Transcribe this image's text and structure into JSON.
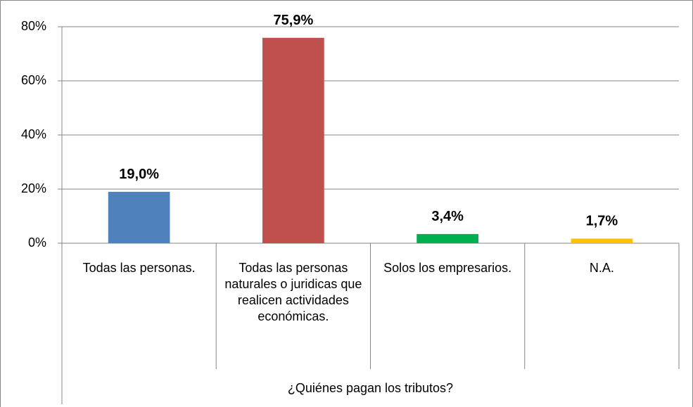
{
  "chart_data": {
    "type": "bar",
    "categories": [
      "Todas las personas.",
      "Todas las personas naturales o juridicas que realicen actividades económicas.",
      "Solos los empresarios.",
      "N.A."
    ],
    "values": [
      19.0,
      75.9,
      3.4,
      1.7
    ],
    "value_labels": [
      "19,0%",
      "75,9%",
      "3,4%",
      "1,7%"
    ],
    "colors": [
      "#4f81bd",
      "#c0504d",
      "#00b050",
      "#ffc000"
    ],
    "xlabel": "¿Quiénes pagan los tributos?",
    "ylim": [
      0,
      80
    ],
    "yticks": [
      {
        "value": 0,
        "label": "0%"
      },
      {
        "value": 20,
        "label": "20%"
      },
      {
        "value": 40,
        "label": "40%"
      },
      {
        "value": 60,
        "label": "60%"
      },
      {
        "value": 80,
        "label": "80%"
      }
    ],
    "grid": true
  }
}
